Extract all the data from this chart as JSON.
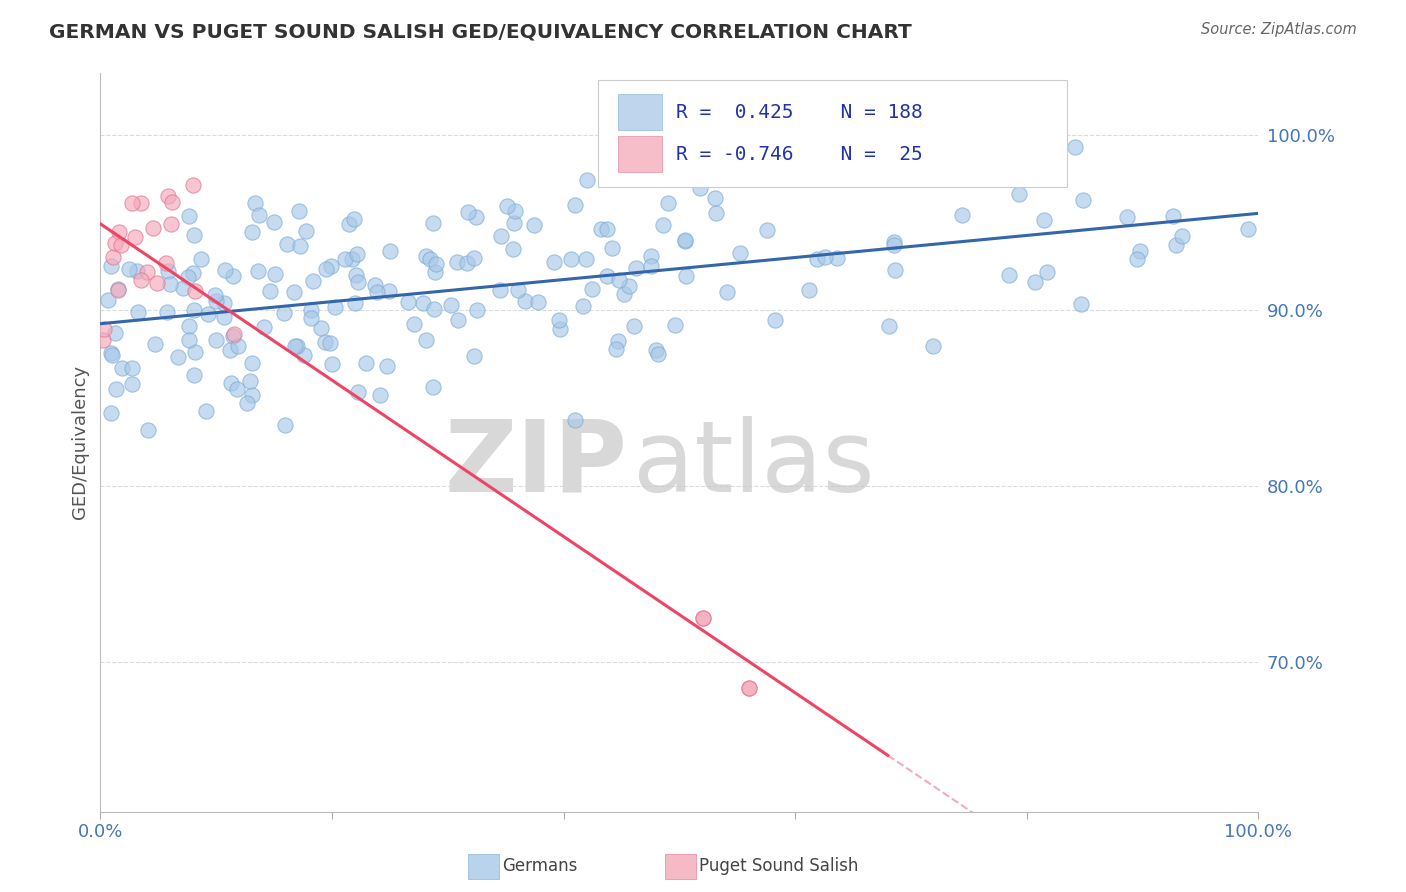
{
  "title": "GERMAN VS PUGET SOUND SALISH GED/EQUIVALENCY CORRELATION CHART",
  "source_text": "Source: ZipAtlas.com",
  "ylabel": "GED/Equivalency",
  "x_min": 0.0,
  "x_max": 1.0,
  "y_min": 0.615,
  "y_max": 1.035,
  "y_ticks": [
    0.7,
    0.8,
    0.9,
    1.0
  ],
  "y_tick_labels": [
    "70.0%",
    "80.0%",
    "90.0%",
    "100.0%"
  ],
  "x_ticks": [
    0.0,
    0.2,
    0.4,
    0.6,
    0.8,
    1.0
  ],
  "x_tick_labels": [
    "0.0%",
    "",
    "",
    "",
    "",
    "100.0%"
  ],
  "blue_color": "#a8c8e8",
  "pink_color": "#f4a8b8",
  "blue_line_color": "#3366aa",
  "pink_line_color": "#ee4466",
  "blue_dot_edge": "#7aaad4",
  "pink_dot_edge": "#e07090",
  "r_blue": 0.425,
  "r_pink": -0.746,
  "n_blue": 188,
  "n_pink": 25,
  "watermark_zip": "ZIP",
  "watermark_atlas": "atlas",
  "background_color": "#ffffff",
  "grid_color": "#cccccc",
  "title_color": "#333333",
  "axis_label_color": "#4477bb",
  "legend_color": "#2233aa",
  "legend_n_color": "#cc2222"
}
